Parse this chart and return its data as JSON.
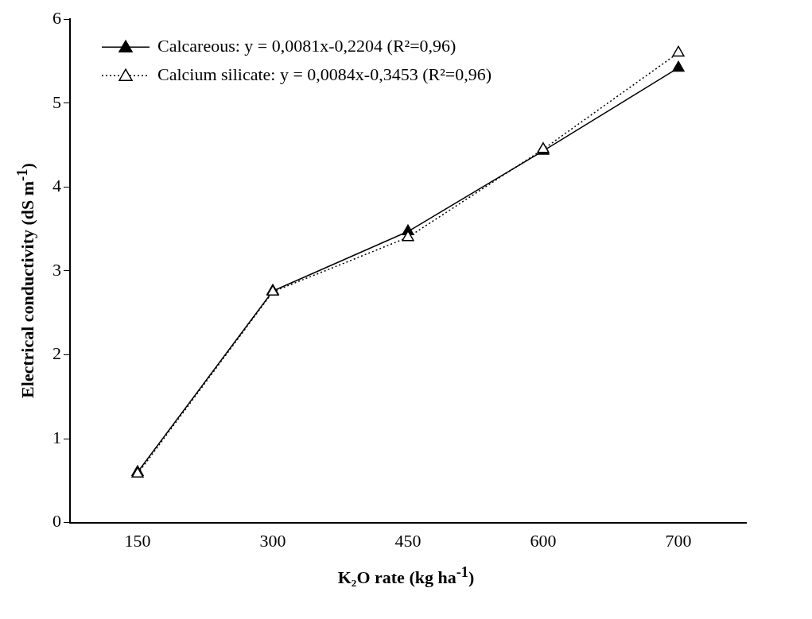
{
  "chart_data": {
    "type": "line",
    "xlabel": "K₂O rate (kg ha$^{-1}$)",
    "ylabel": "Electrical conductivity (dS m$^{-1}$)",
    "categories": [
      "150",
      "300",
      "450",
      "600",
      "700"
    ],
    "series": [
      {
        "name": "Calcareous: y = 0,0081x-0,2204 (R²=0,96)",
        "color": "#000000",
        "values": [
          0.6,
          2.76,
          3.47,
          4.43,
          5.42
        ],
        "line_style": "solid"
      },
      {
        "name": "Calcium silicate: y = 0,0084x-0,3453 (R²=0,96)",
        "color": "#000000",
        "values": [
          0.58,
          2.75,
          3.4,
          4.45,
          5.6
        ],
        "line_style": "dotted"
      }
    ],
    "ylim": [
      0,
      6
    ],
    "yticks": [
      0,
      1,
      2,
      3,
      4,
      5,
      6
    ],
    "grid": false,
    "legend": "top left",
    "marker": "triangle"
  }
}
